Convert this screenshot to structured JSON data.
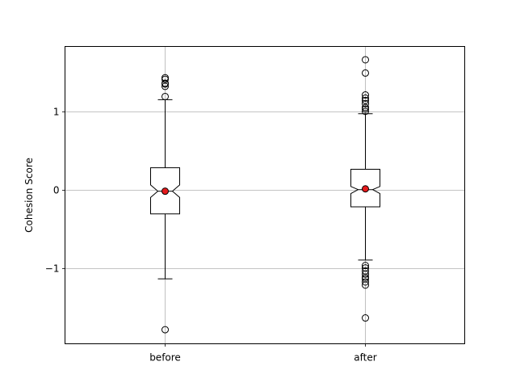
{
  "chart_data": {
    "type": "boxplot",
    "notched": true,
    "ylabel": "Cohesion Score",
    "xlabel": "",
    "categories": [
      "before",
      "after"
    ],
    "ylim": [
      -1.97,
      1.83
    ],
    "yticks": [
      -1,
      0,
      1
    ],
    "ytick_labels": [
      "−1",
      "0",
      "1"
    ],
    "grid": true,
    "mean_color": "#e41a1c",
    "boxes": [
      {
        "name": "before",
        "q1": -0.31,
        "median": -0.02,
        "q3": 0.28,
        "whisker_low": -1.14,
        "whisker_high": 1.15,
        "notch_low": -0.1,
        "notch_high": 0.06,
        "mean": -0.02,
        "outliers": [
          -1.79,
          1.19,
          1.32,
          1.35,
          1.36,
          1.41,
          1.43
        ]
      },
      {
        "name": "after",
        "q1": -0.22,
        "median": 0.0,
        "q3": 0.26,
        "whisker_low": -0.9,
        "whisker_high": 0.97,
        "notch_low": -0.05,
        "notch_high": 0.04,
        "mean": 0.01,
        "outliers": [
          -1.64,
          -1.22,
          -1.18,
          -1.14,
          -1.12,
          -1.08,
          -1.04,
          -1.0,
          -0.97,
          1.0,
          1.03,
          1.05,
          1.1,
          1.14,
          1.17,
          1.21,
          1.49,
          1.66
        ]
      }
    ]
  }
}
